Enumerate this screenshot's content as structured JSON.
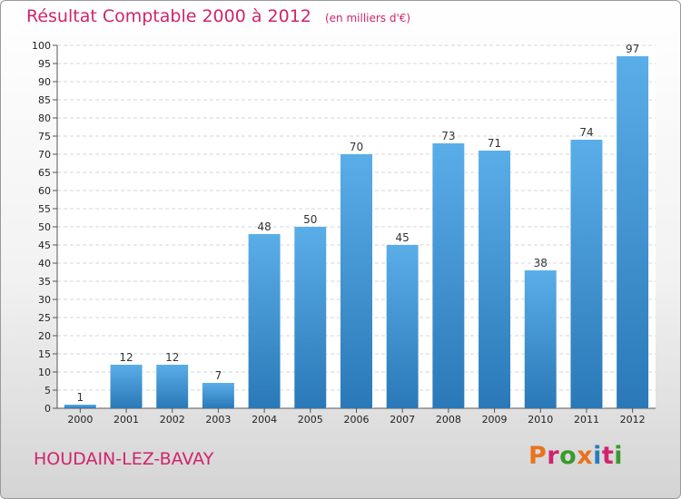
{
  "header": {
    "title": "Résultat Comptable 2000 à 2012",
    "unit_note": "(en milliers d'€)"
  },
  "footer": {
    "place": "HOUDAIN-LEZ-BAVAY",
    "logo_text": "Proxiti",
    "logo_colors": [
      "#e8731e",
      "#d0246e",
      "#3a9a2c",
      "#e8731e",
      "#2a7bbf",
      "#d0246e",
      "#3a9a2c"
    ]
  },
  "chart_data": {
    "type": "bar",
    "categories": [
      "2000",
      "2001",
      "2002",
      "2003",
      "2004",
      "2005",
      "2006",
      "2007",
      "2008",
      "2009",
      "2010",
      "2011",
      "2012"
    ],
    "values": [
      1,
      12,
      12,
      7,
      48,
      50,
      70,
      45,
      73,
      71,
      38,
      74,
      97
    ],
    "title": "Résultat Comptable 2000 à 2012",
    "subtitle": "(en milliers d'€)",
    "ylim": [
      0,
      100
    ],
    "yticks": [
      0,
      5,
      10,
      15,
      20,
      25,
      30,
      35,
      40,
      45,
      50,
      55,
      60,
      65,
      70,
      75,
      80,
      85,
      90,
      95,
      100
    ],
    "grid": true,
    "data_labels": true,
    "bar_color_top": "#5aaee8",
    "bar_color_bottom": "#2a78b8"
  }
}
